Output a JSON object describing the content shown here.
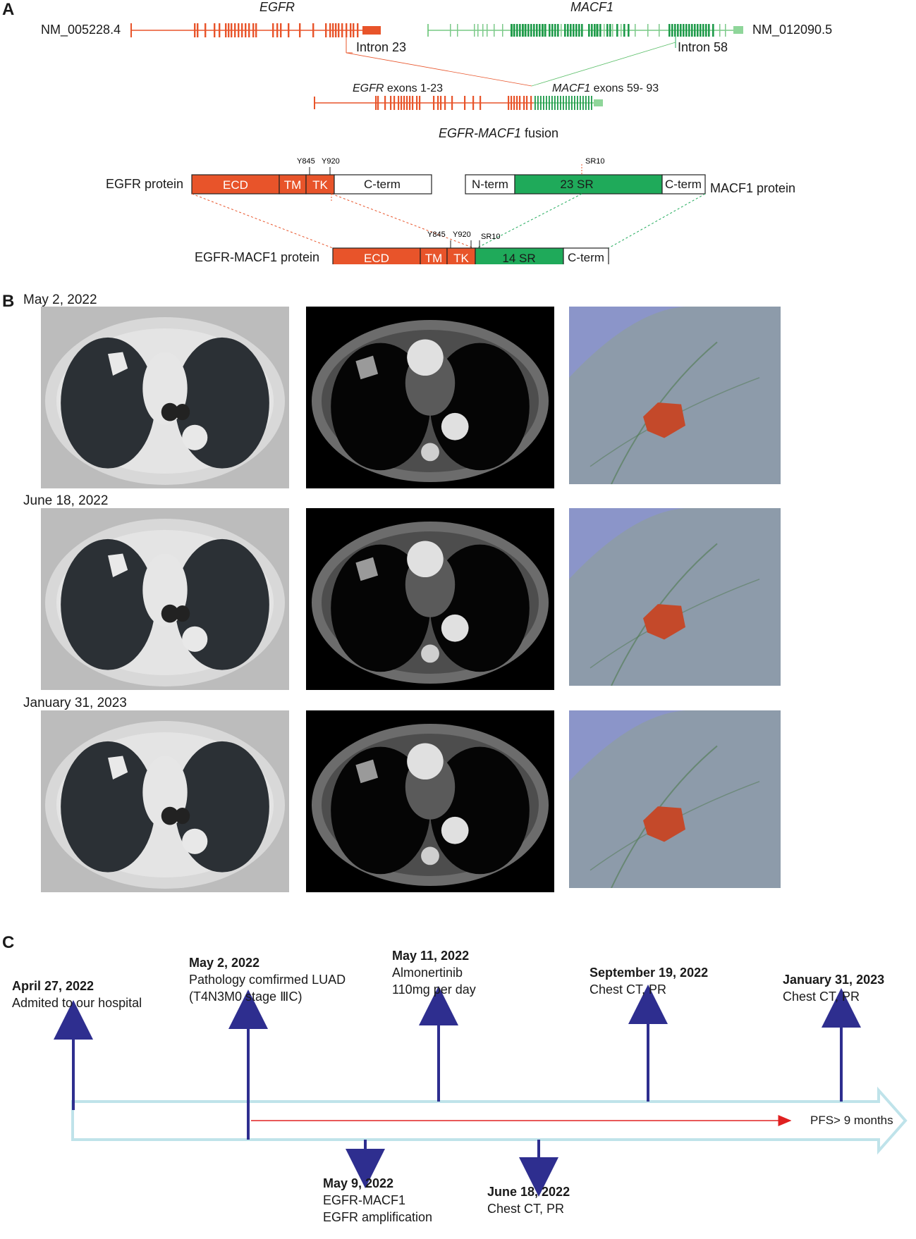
{
  "panels": {
    "a": "A",
    "b": "B",
    "c": "C"
  },
  "panel_a": {
    "egfr_gene": "EGFR",
    "macf1_gene": "MACF1",
    "egfr_accession": "NM_005228.4",
    "macf1_accession": "NM_012090.5",
    "intron_egfr": "Intron 23",
    "intron_macf1": "Intron 58",
    "fusion_egfr_label_gene": "EGFR",
    "fusion_egfr_label_rest": " exons 1-23",
    "fusion_macf1_label_gene": "MACF1",
    "fusion_macf1_label_rest": " exons 59- 93",
    "fusion_title_gene": "EGFR-MACF1",
    "fusion_title_rest": " fusion",
    "egfr_protein_label": "EGFR protein",
    "macf1_protein_label": "MACF1 protein",
    "fusion_protein_label": "EGFR-MACF1 protein",
    "domains": {
      "ecd": "ECD",
      "tm": "TM",
      "tk": "TK",
      "cterm": "C-term",
      "nterm": "N-term",
      "sr23": "23 SR",
      "sr14": "14 SR",
      "y845": "Y845",
      "y920": "Y920",
      "sr10": "SR10"
    },
    "colors": {
      "egfr": "#e8542a",
      "macf1": "#1faa5a",
      "macf1_light": "#8fd69a"
    }
  },
  "panel_b": {
    "dates": [
      "May 2, 2022",
      "June 18, 2022",
      "January 31, 2023"
    ]
  },
  "panel_c": {
    "events_above": [
      {
        "date": "April 27, 2022",
        "line1": "Admited to our hospital",
        "line2": ""
      },
      {
        "date": "May 2, 2022",
        "line1": "Pathology comfirmed LUAD",
        "line2": "(T4N3M0 stage ⅢC)"
      },
      {
        "date": "May 11, 2022",
        "line1": "Almonertinib",
        "line2": "110mg per day"
      },
      {
        "date": "September 19, 2022",
        "line1": "Chest CT, PR",
        "line2": ""
      },
      {
        "date": "January 31, 2023",
        "line1": "Chest CT, PR",
        "line2": ""
      }
    ],
    "events_below": [
      {
        "date": "May 9, 2022",
        "line1": "EGFR-MACF1",
        "line2": "EGFR amplification"
      },
      {
        "date": "June 18, 2022",
        "line1": "Chest CT, PR",
        "line2": ""
      }
    ],
    "pfs": "PFS> 9 months",
    "colors": {
      "arrow": "#2e2e8f",
      "timeline": "#bfe3ea",
      "pfs": "#e02020"
    }
  }
}
